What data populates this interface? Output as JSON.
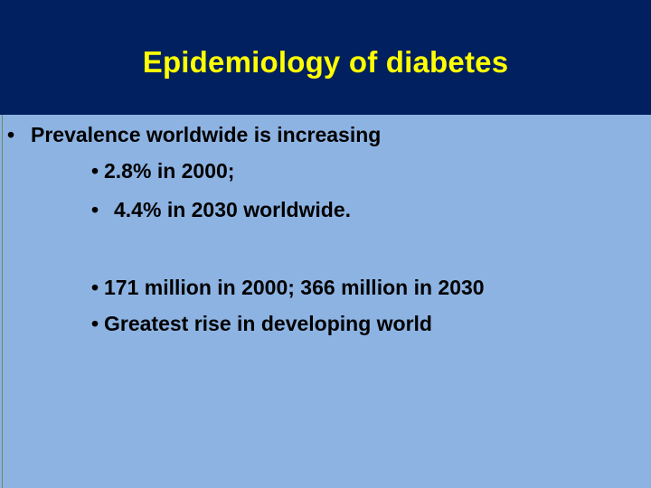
{
  "slide": {
    "title": "Epidemiology of diabetes",
    "bullet_glyph": "•",
    "bullets": [
      {
        "text": "Prevalence worldwide is increasing",
        "level": 1
      },
      {
        "text": "2.8% in 2000;",
        "level": 2
      },
      {
        "text": "4.4% in 2030 worldwide.",
        "level": 2
      },
      {
        "text": "171 million in 2000; 366 million in 2030",
        "level": 2
      },
      {
        "text": "Greatest rise in developing world",
        "level": 2
      }
    ]
  },
  "colors": {
    "title_bar": "#002060",
    "title_text": "#ffff00",
    "body_background": "#8db3e2",
    "body_text": "#000000"
  }
}
